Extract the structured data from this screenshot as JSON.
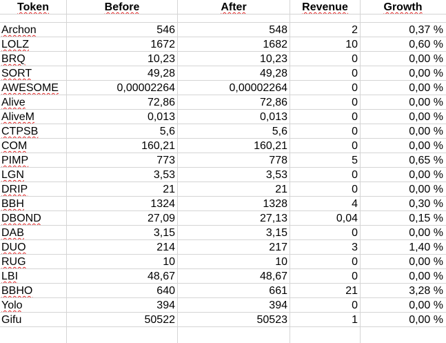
{
  "headers": [
    "Token",
    "Before",
    "After",
    "Revenue",
    "Growth"
  ],
  "rows": [
    [
      "Archon",
      "546",
      "548",
      "2",
      "0,37 %"
    ],
    [
      "LOLZ",
      "1672",
      "1682",
      "10",
      "0,60 %"
    ],
    [
      "BRQ",
      "10,23",
      "10,23",
      "0",
      "0,00 %"
    ],
    [
      "SORT",
      "49,28",
      "49,28",
      "0",
      "0,00 %"
    ],
    [
      "AWESOME",
      "0,00002264",
      "0,00002264",
      "0",
      "0,00 %"
    ],
    [
      "Alive",
      "72,86",
      "72,86",
      "0",
      "0,00 %"
    ],
    [
      "AliveM",
      "0,013",
      "0,013",
      "0",
      "0,00 %"
    ],
    [
      "CTPSB",
      "5,6",
      "5,6",
      "0",
      "0,00 %"
    ],
    [
      "COM",
      "160,21",
      "160,21",
      "0",
      "0,00 %"
    ],
    [
      "PIMP",
      "773",
      "778",
      "5",
      "0,65 %"
    ],
    [
      "LGN",
      "3,53",
      "3,53",
      "0",
      "0,00 %"
    ],
    [
      "DRIP",
      "21",
      "21",
      "0",
      "0,00 %"
    ],
    [
      "BBH",
      "1324",
      "1328",
      "4",
      "0,30 %"
    ],
    [
      "DBOND",
      "27,09",
      "27,13",
      "0,04",
      "0,15 %"
    ],
    [
      "DAB",
      "3,15",
      "3,15",
      "0",
      "0,00 %"
    ],
    [
      "DUO",
      "214",
      "217",
      "3",
      "1,40 %"
    ],
    [
      "RUG",
      "10",
      "10",
      "0",
      "0,00 %"
    ],
    [
      "LBI",
      "48,67",
      "48,67",
      "0",
      "0,00 %"
    ],
    [
      "BBHO",
      "640",
      "661",
      "21",
      "3,28 %"
    ],
    [
      "Yolo",
      "394",
      "394",
      "0",
      "0,00 %"
    ],
    [
      "Gifu",
      "50522",
      "50523",
      "1",
      "0,00 %"
    ]
  ]
}
